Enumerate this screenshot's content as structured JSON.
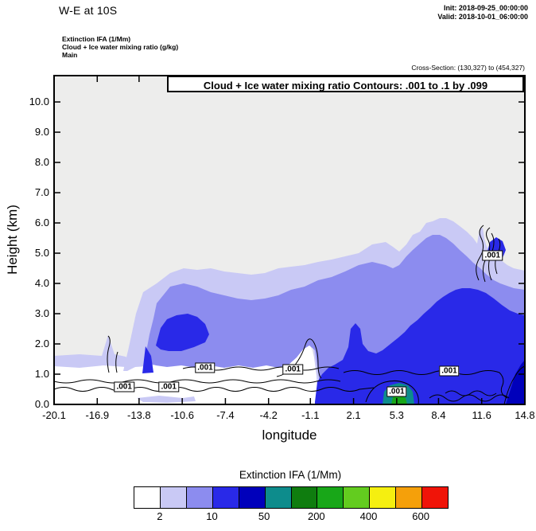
{
  "header": {
    "title": "W-E at 10S",
    "init_label": "Init: 2018-09-25_00:00:00",
    "valid_label": "Valid: 2018-10-01_06:00:00"
  },
  "legend_block": {
    "line1": "Extinction IFA   (1/Mm)",
    "line2": "Cloud + Ice water mixing ratio   (g/kg)",
    "line3": "Main"
  },
  "cross_section": "Cross-Section: (130,327) to (454,327)",
  "plot": {
    "contour_title": "Cloud + Ice water mixing ratio Contours: .001 to .1 by .099",
    "xlabel": "longitude",
    "ylabel": "Height (km)"
  },
  "chart_data": {
    "type": "filled-contour cross-section",
    "title": "Cloud + Ice water mixing ratio Contours: .001 to .1 by .099",
    "fill_field": "Extinction IFA (1/Mm)",
    "line_field": "Cloud + Ice water mixing ratio (g/kg)",
    "xlabel": "longitude",
    "ylabel": "Height (km)",
    "x_range": [
      -20.1,
      14.8
    ],
    "y_range": [
      0,
      10.87
    ],
    "x_ticks": [
      -20.1,
      -16.9,
      -13.8,
      -10.6,
      -7.4,
      -4.2,
      -1.1,
      2.1,
      5.3,
      8.4,
      11.6,
      14.8
    ],
    "x_tick_labels": [
      "-20.1",
      "-16.9",
      "-13.8",
      "-10.6",
      "-7.4",
      "-4.2",
      "-1.1",
      "2.1",
      "5.3",
      "8.4",
      "11.6",
      "14.8"
    ],
    "y_ticks": [
      0,
      1,
      2,
      3,
      4,
      5,
      6,
      7,
      8,
      9,
      10
    ],
    "y_tick_labels": [
      "0.0",
      "1.0",
      "2.0",
      "3.0",
      "4.0",
      "5.0",
      "6.0",
      "7.0",
      "8.0",
      "9.0",
      "10.0"
    ],
    "contour_levels": {
      "start": 0.001,
      "end": 0.1,
      "interval": 0.099
    },
    "contour_labels": [
      {
        "text": ".001",
        "lon": -14.9,
        "km": 0.58
      },
      {
        "text": ".001",
        "lon": -11.6,
        "km": 0.58
      },
      {
        "text": ".001",
        "lon": -8.9,
        "km": 1.2
      },
      {
        "text": ".001",
        "lon": -2.4,
        "km": 1.15
      },
      {
        "text": ".001",
        "lon": 5.3,
        "km": 0.42
      },
      {
        "text": ".001",
        "lon": 9.2,
        "km": 1.1
      },
      {
        "text": ".001",
        "lon": 12.4,
        "km": 4.92
      }
    ],
    "palette": {
      "bg": "#ededec",
      "clear": "#ffffff",
      "c1": "#c9c9f5",
      "c2": "#8c8cef",
      "c3": "#2929e8",
      "c4": "#0000bb",
      "teal": "#0d8c8c",
      "green": "#18a718"
    },
    "colorbar": {
      "title": "Extinction IFA  (1/Mm)",
      "colors": [
        "#ffffff",
        "#c9c9f5",
        "#8c8cef",
        "#2929e8",
        "#0000bb",
        "#0d8c8c",
        "#0f7d0f",
        "#18a718",
        "#63cc1f",
        "#f5ef10",
        "#f5a00a",
        "#f01408"
      ],
      "labels": [
        "2",
        "10",
        "50",
        "200",
        "400",
        "600"
      ],
      "label_boundaries": [
        1,
        3,
        5,
        7,
        9,
        11
      ]
    }
  }
}
